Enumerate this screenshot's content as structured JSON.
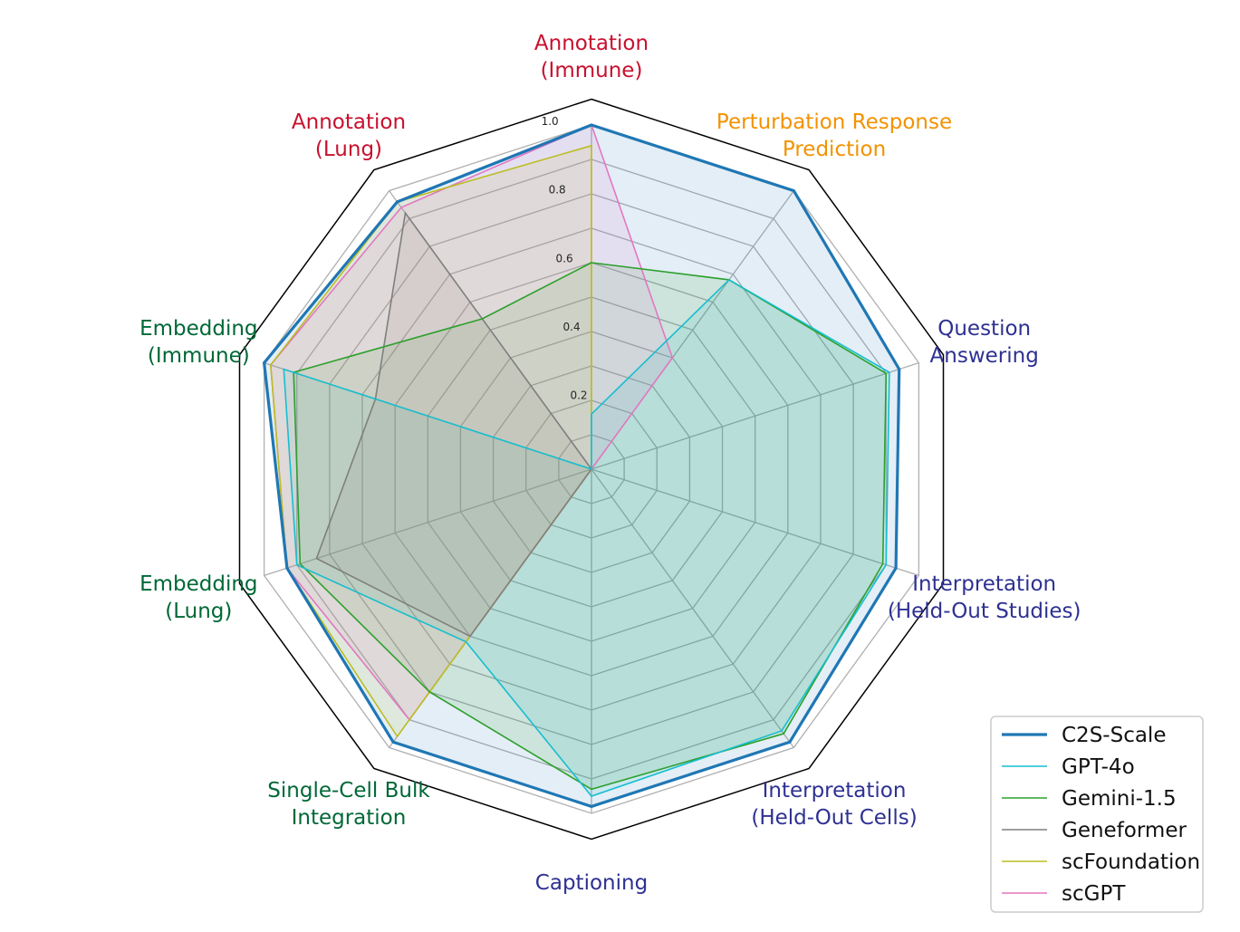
{
  "chart_data": {
    "type": "radar",
    "axes": [
      {
        "label": [
          "Annotation",
          "(Immune)"
        ],
        "color": "#c8102e"
      },
      {
        "label": [
          "Perturbation Response",
          "Prediction"
        ],
        "color": "#f39200"
      },
      {
        "label": [
          "Question",
          "Answering"
        ],
        "color": "#2e3192"
      },
      {
        "label": [
          "Interpretation",
          "(Held-Out Studies)"
        ],
        "color": "#2e3192"
      },
      {
        "label": [
          "Interpretation",
          "(Held-Out Cells)"
        ],
        "color": "#2e3192"
      },
      {
        "label": [
          "Captioning"
        ],
        "color": "#2e3192"
      },
      {
        "label": [
          "Single-Cell Bulk",
          "Integration"
        ],
        "color": "#006837"
      },
      {
        "label": [
          "Embedding",
          "(Lung)"
        ],
        "color": "#006837"
      },
      {
        "label": [
          "Embedding",
          "(Immune)"
        ],
        "color": "#006837"
      },
      {
        "label": [
          "Annotation",
          "(Lung)"
        ],
        "color": "#c8102e"
      }
    ],
    "rlim": [
      0,
      1.0
    ],
    "rticks": [
      0.2,
      0.4,
      0.6,
      0.8,
      1.0
    ],
    "rtick_labels": [
      "0.2",
      "0.4",
      "0.6",
      "0.8",
      "1.0"
    ],
    "grid": true,
    "legend_position": "lower-right",
    "series": [
      {
        "name": "C2S-Scale",
        "color": "#1f77b4",
        "width": 3.2,
        "fill": true,
        "values": [
          1.0,
          1.0,
          0.94,
          0.93,
          0.98,
          0.98,
          0.98,
          0.93,
          1.0,
          0.96
        ]
      },
      {
        "name": "GPT-4o",
        "color": "#17becf",
        "width": 1.6,
        "fill": true,
        "values": [
          0.16,
          0.68,
          0.91,
          0.9,
          0.94,
          0.95,
          0.62,
          0.9,
          0.94,
          0.0
        ]
      },
      {
        "name": "Gemini-1.5",
        "color": "#2ca02c",
        "width": 1.6,
        "fill": true,
        "values": [
          0.6,
          0.68,
          0.9,
          0.89,
          0.95,
          0.93,
          0.8,
          0.89,
          0.91,
          0.54
        ]
      },
      {
        "name": "Geneformer",
        "color": "#7f7f7f",
        "width": 1.6,
        "fill": true,
        "values": [
          0.0,
          0.0,
          0.0,
          0.0,
          0.0,
          0.0,
          0.6,
          0.84,
          0.66,
          0.92
        ]
      },
      {
        "name": "scFoundation",
        "color": "#bcbd22",
        "width": 1.6,
        "fill": true,
        "values": [
          0.94,
          0.0,
          0.0,
          0.0,
          0.0,
          0.0,
          0.96,
          0.93,
          0.98,
          0.96
        ]
      },
      {
        "name": "scGPT",
        "color": "#e377c2",
        "width": 1.6,
        "fill": true,
        "values": [
          1.0,
          0.4,
          0.0,
          0.0,
          0.0,
          0.0,
          0.9,
          0.93,
          0.98,
          0.94
        ]
      }
    ]
  }
}
